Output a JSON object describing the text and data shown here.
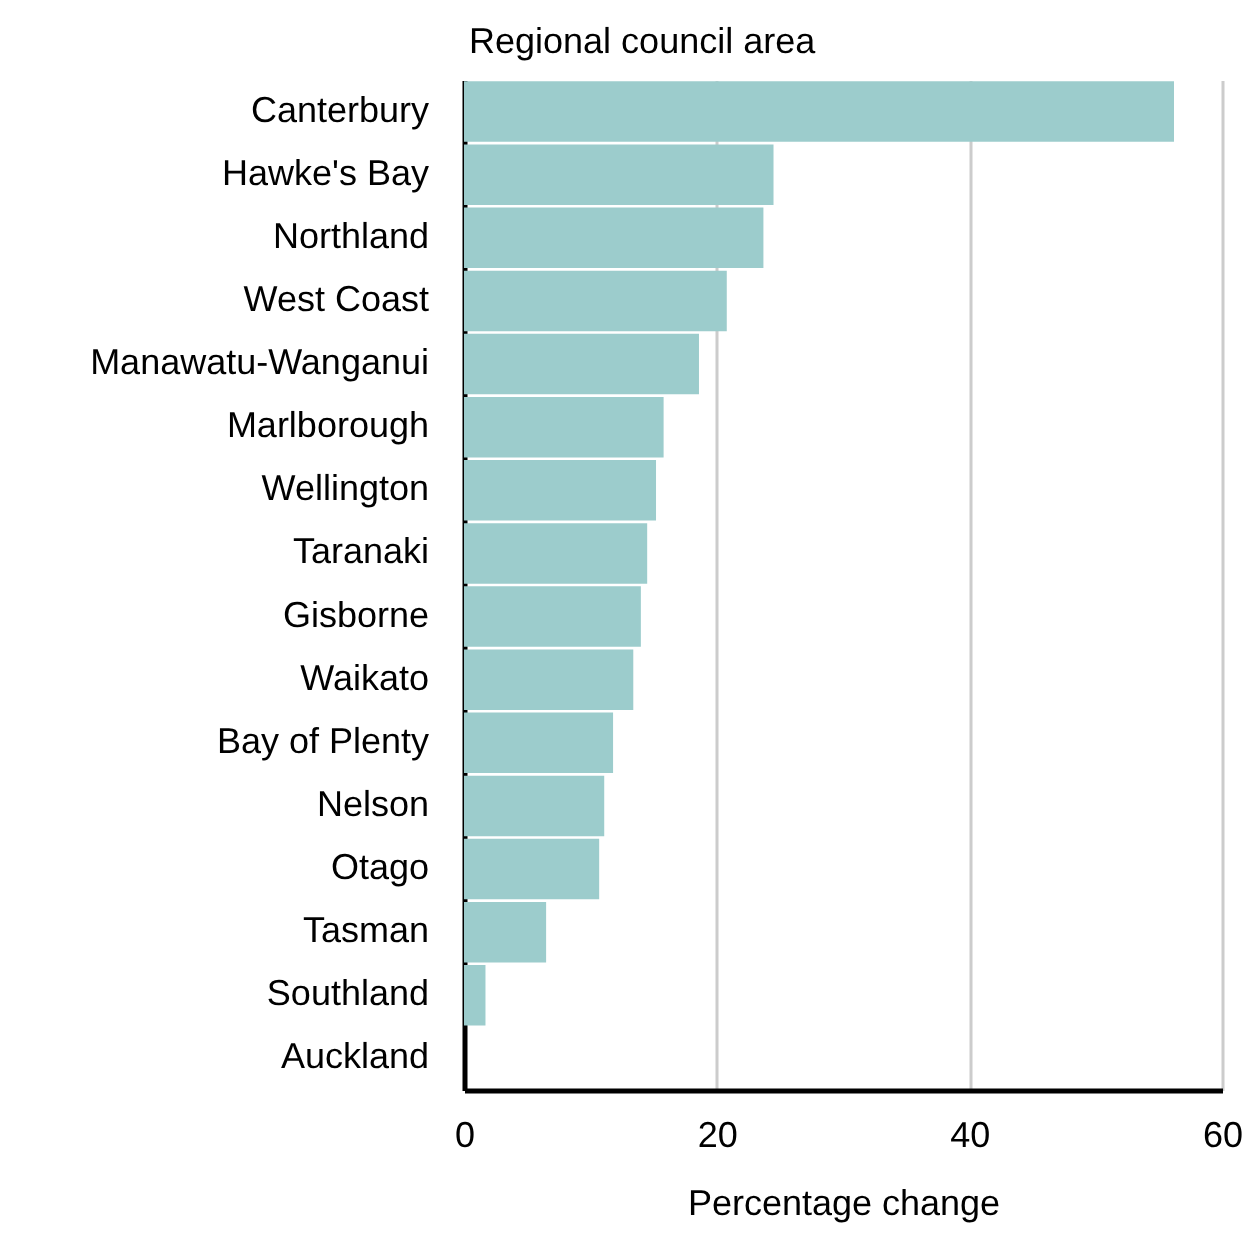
{
  "chart_data": {
    "type": "bar",
    "orientation": "horizontal",
    "ylabel": "Regional council area",
    "xlabel": "Percentage change",
    "categories": [
      "Canterbury",
      "Hawke's Bay",
      "Northland",
      "West Coast",
      "Manawatu-Wanganui",
      "Marlborough",
      "Wellington",
      "Taranaki",
      "Gisborne",
      "Waikato",
      "Bay of Plenty",
      "Nelson",
      "Otago",
      "Tasman",
      "Southland",
      "Auckland"
    ],
    "values": [
      56.2,
      24.5,
      23.7,
      20.8,
      18.6,
      15.8,
      15.2,
      14.5,
      14.0,
      13.4,
      11.8,
      11.1,
      10.7,
      6.5,
      1.7,
      0
    ],
    "color": "#9ccccc",
    "xlim": [
      0,
      60
    ],
    "xticks": [
      0,
      20,
      40,
      60
    ],
    "grid": "x"
  }
}
